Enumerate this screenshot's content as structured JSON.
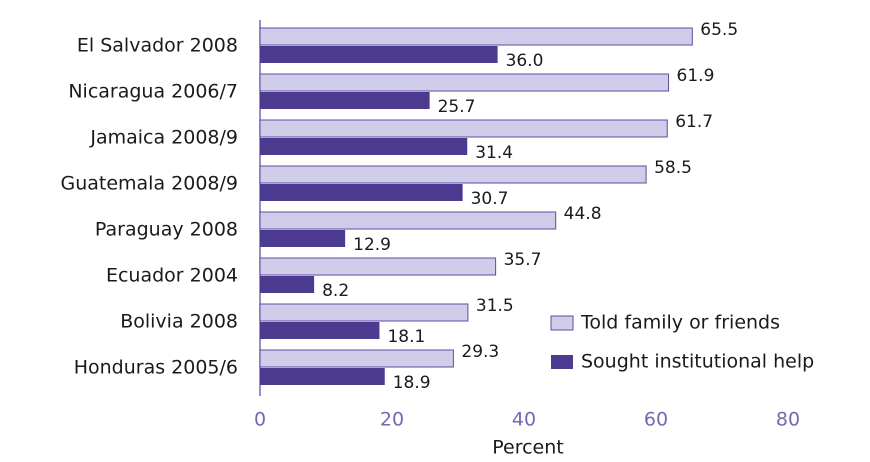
{
  "chart_data": {
    "type": "bar",
    "orientation": "horizontal",
    "x_label": "Percent",
    "categories": [
      "El Salvador 2008",
      "Nicaragua 2006/7",
      "Jamaica 2008/9",
      "Guatemala 2008/9",
      "Paraguay 2008",
      "Ecuador 2004",
      "Bolivia 2008",
      "Honduras 2005/6"
    ],
    "series": [
      {
        "name": "Told family or friends",
        "color": "#cfcdea",
        "values": [
          65.5,
          61.9,
          61.7,
          58.5,
          44.8,
          35.7,
          31.5,
          29.3
        ],
        "value_labels": [
          "65.5",
          "61.9",
          "61.7",
          "58.5",
          "44.8",
          "35.7",
          "31.5",
          "29.3"
        ]
      },
      {
        "name": "Sought institutional help",
        "color": "#4b3a90",
        "values": [
          36.0,
          25.7,
          31.4,
          30.7,
          12.9,
          8.2,
          18.1,
          18.9
        ],
        "value_labels": [
          "36.0",
          "25.7",
          "31.4",
          "30.7",
          "12.9",
          "8.2",
          "18.1",
          "18.9"
        ]
      }
    ],
    "xlim": [
      0,
      80
    ],
    "xticks": [
      0,
      20,
      40,
      60,
      80
    ],
    "grid": false,
    "legend": "lower right"
  }
}
